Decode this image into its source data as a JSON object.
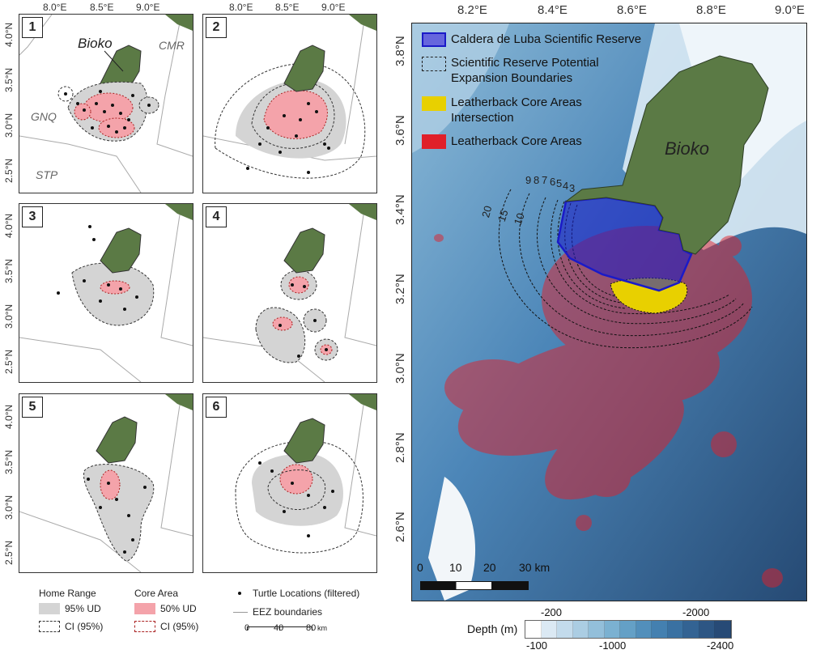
{
  "panels": [
    {
      "id": "1",
      "labels": {
        "island": "Bioko",
        "c1": "CMR",
        "c2": "GNQ",
        "c3": "STP"
      }
    },
    {
      "id": "2"
    },
    {
      "id": "3"
    },
    {
      "id": "4"
    },
    {
      "id": "5"
    },
    {
      "id": "6"
    }
  ],
  "small_axes": {
    "x_ticks": [
      "8.0°E",
      "8.5°E",
      "9.0°E"
    ],
    "y_ticks": [
      "4.0°N",
      "3.5°N",
      "3.0°N",
      "2.5°N"
    ]
  },
  "legend": {
    "home_range_title": "Home Range",
    "core_area_title": "Core Area",
    "ud95": "95% UD",
    "ud50": "50% UD",
    "ci_home": "CI (95%)",
    "ci_core": "CI (95%)",
    "turtles": "Turtle Locations (filtered)",
    "eez": "EEZ boundaries",
    "scale_ticks": [
      "0",
      "40",
      "80"
    ],
    "scale_unit": "km"
  },
  "main_map": {
    "x_ticks": [
      "8.2°E",
      "8.4°E",
      "8.6°E",
      "8.8°E",
      "9.0°E"
    ],
    "y_ticks": [
      "3.8°N",
      "3.6°N",
      "3.4°N",
      "3.2°N",
      "3.0°N",
      "2.8°N",
      "2.6°N"
    ],
    "island": "Bioko",
    "legend": [
      "Caldera de Luba Scientific Reserve",
      "Scientific Reserve Potential Expansion Boundaries",
      "Leatherback Core Areas Intersection",
      "Leatherback Core Areas"
    ],
    "contour_labels": [
      "20",
      "15",
      "10",
      "9",
      "8",
      "7",
      "6",
      "5",
      "4",
      "3"
    ],
    "scale_labels": [
      "0",
      "10",
      "20",
      "30 km"
    ]
  },
  "depth_bar": {
    "title": "Depth (m)",
    "top_labels": [
      "-200",
      "-2000"
    ],
    "bottom_labels": [
      "-100",
      "-1000",
      "-2400"
    ],
    "colors": [
      "#ffffff",
      "#dbe9f4",
      "#c3dbec",
      "#abcde3",
      "#93bfda",
      "#7bb1d1",
      "#64a0c6",
      "#528fbb",
      "#4480b0",
      "#3a71a2",
      "#336393",
      "#2d5684",
      "#274a76"
    ]
  },
  "colors": {
    "land": "#5b7a45",
    "reserve": "#1a1ac8",
    "core": "#e0202a",
    "intersection": "#e8d000",
    "ud95": "#d4d4d4",
    "ud50": "#f4a3aa"
  }
}
